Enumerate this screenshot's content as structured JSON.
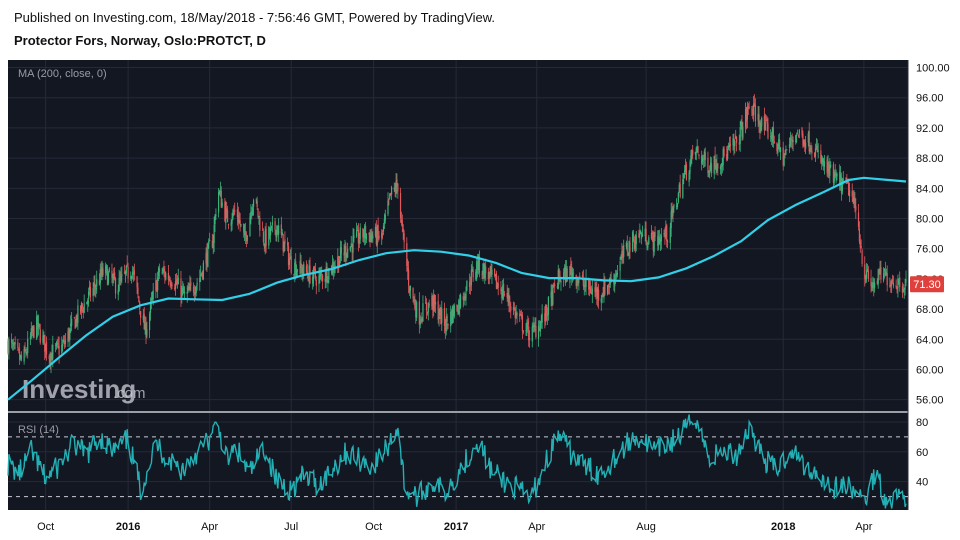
{
  "header": {
    "published": "Published on Investing.com, 18/May/2018 - 7:56:46 GMT, Powered by TradingView.",
    "instrument": "Protector Fors, Norway, Oslo:PROTCT, D"
  },
  "watermark": {
    "brand": "Investing",
    "suffix": ".com"
  },
  "colors": {
    "background": "#131722",
    "grid": "#262a38",
    "candle_up": "#3bb37a",
    "candle_down": "#e0595b",
    "ma_line": "#31d0e8",
    "rsi_line": "#23b0b5",
    "price_badge": "#e0403c"
  },
  "chart_data": [
    {
      "type": "candlestick",
      "indicator_label": "MA (200, close, 0)",
      "y_axis_ticks": [
        "100.00",
        "96.00",
        "92.00",
        "88.00",
        "84.00",
        "80.00",
        "76.00",
        "72.00",
        "68.00",
        "64.00",
        "60.00",
        "56.00"
      ],
      "ylim": [
        54.5,
        101
      ],
      "last_price": "71.30",
      "x_axis_ticks": [
        "Oct",
        "2016",
        "Apr",
        "Jul",
        "Oct",
        "2017",
        "Apr",
        "Aug",
        "2018",
        "Apr"
      ],
      "x_range": [
        "2015-08-20",
        "2018-05-18"
      ],
      "close_path": [
        [
          "2015-08-20",
          63.5
        ],
        [
          "2015-09-05",
          61
        ],
        [
          "2015-09-20",
          66
        ],
        [
          "2015-10-05",
          62
        ],
        [
          "2015-10-20",
          63
        ],
        [
          "2015-11-05",
          67
        ],
        [
          "2015-11-20",
          70
        ],
        [
          "2015-12-05",
          73
        ],
        [
          "2015-12-20",
          71
        ],
        [
          "2016-01-05",
          73.5
        ],
        [
          "2016-01-20",
          65
        ],
        [
          "2016-02-05",
          73
        ],
        [
          "2016-02-20",
          72
        ],
        [
          "2016-03-05",
          69.5
        ],
        [
          "2016-03-20",
          72
        ],
        [
          "2016-04-05",
          77.5
        ],
        [
          "2016-04-10",
          84
        ],
        [
          "2016-04-20",
          80
        ],
        [
          "2016-05-01",
          81
        ],
        [
          "2016-05-10",
          77
        ],
        [
          "2016-05-20",
          83
        ],
        [
          "2016-06-01",
          77
        ],
        [
          "2016-06-15",
          79
        ],
        [
          "2016-07-01",
          74
        ],
        [
          "2016-07-15",
          73
        ],
        [
          "2016-08-01",
          72
        ],
        [
          "2016-08-15",
          73.5
        ],
        [
          "2016-09-01",
          76
        ],
        [
          "2016-09-20",
          78
        ],
        [
          "2016-10-10",
          77.5
        ],
        [
          "2016-10-20",
          83
        ],
        [
          "2016-10-28",
          84.5
        ],
        [
          "2016-11-01",
          79
        ],
        [
          "2016-11-10",
          71
        ],
        [
          "2016-11-20",
          67
        ],
        [
          "2016-12-05",
          69
        ],
        [
          "2016-12-20",
          66
        ],
        [
          "2017-01-05",
          69
        ],
        [
          "2017-01-25",
          74
        ],
        [
          "2017-02-10",
          72
        ],
        [
          "2017-02-25",
          70
        ],
        [
          "2017-03-10",
          67
        ],
        [
          "2017-03-25",
          64.5
        ],
        [
          "2017-04-10",
          67
        ],
        [
          "2017-04-25",
          72
        ],
        [
          "2017-05-10",
          73
        ],
        [
          "2017-05-25",
          71
        ],
        [
          "2017-06-10",
          70
        ],
        [
          "2017-06-25",
          72
        ],
        [
          "2017-07-10",
          76
        ],
        [
          "2017-07-25",
          78
        ],
        [
          "2017-08-10",
          77
        ],
        [
          "2017-08-25",
          78
        ],
        [
          "2017-09-10",
          85
        ],
        [
          "2017-09-25",
          89
        ],
        [
          "2017-10-10",
          87
        ],
        [
          "2017-10-25",
          88
        ],
        [
          "2017-11-10",
          90
        ],
        [
          "2017-11-25",
          95
        ],
        [
          "2017-12-10",
          92
        ],
        [
          "2017-12-20",
          91
        ],
        [
          "2018-01-01",
          88
        ],
        [
          "2018-01-15",
          91.5
        ],
        [
          "2018-02-01",
          90
        ],
        [
          "2018-02-15",
          87
        ],
        [
          "2018-03-01",
          85
        ],
        [
          "2018-03-15",
          84
        ],
        [
          "2018-03-25",
          80
        ],
        [
          "2018-04-01",
          73
        ],
        [
          "2018-04-10",
          71
        ],
        [
          "2018-04-20",
          72.5
        ],
        [
          "2018-05-01",
          72
        ],
        [
          "2018-05-10",
          71.5
        ],
        [
          "2018-05-18",
          71.3
        ]
      ],
      "ma_200": [
        [
          "2015-08-20",
          56
        ],
        [
          "2015-09-15",
          58.5
        ],
        [
          "2015-10-15",
          61.5
        ],
        [
          "2015-11-15",
          64.5
        ],
        [
          "2015-12-15",
          67
        ],
        [
          "2016-01-15",
          68.5
        ],
        [
          "2016-02-15",
          69.4
        ],
        [
          "2016-03-15",
          69.3
        ],
        [
          "2016-04-15",
          69.2
        ],
        [
          "2016-05-15",
          70
        ],
        [
          "2016-06-15",
          71.5
        ],
        [
          "2016-07-15",
          72.5
        ],
        [
          "2016-08-15",
          73.3
        ],
        [
          "2016-09-15",
          74.5
        ],
        [
          "2016-10-15",
          75.4
        ],
        [
          "2016-11-15",
          75.8
        ],
        [
          "2016-12-15",
          75.6
        ],
        [
          "2017-01-15",
          75.1
        ],
        [
          "2017-02-15",
          74.1
        ],
        [
          "2017-03-15",
          72.8
        ],
        [
          "2017-04-15",
          72.1
        ],
        [
          "2017-05-15",
          72.1
        ],
        [
          "2017-06-15",
          71.8
        ],
        [
          "2017-07-15",
          71.7
        ],
        [
          "2017-08-15",
          72.2
        ],
        [
          "2017-09-15",
          73.4
        ],
        [
          "2017-10-15",
          75
        ],
        [
          "2017-11-15",
          77
        ],
        [
          "2017-12-15",
          79.8
        ],
        [
          "2018-01-15",
          81.8
        ],
        [
          "2018-02-15",
          83.5
        ],
        [
          "2018-03-15",
          85.1
        ],
        [
          "2018-04-01",
          85.4
        ],
        [
          "2018-05-18",
          84.9
        ]
      ]
    },
    {
      "type": "line",
      "indicator_label": "RSI (14)",
      "y_axis_ticks": [
        "80",
        "60",
        "40"
      ],
      "ylim": [
        21,
        86
      ],
      "reference_levels": [
        70,
        30
      ],
      "x_range": [
        "2015-08-20",
        "2018-05-18"
      ],
      "series": [
        {
          "values": [
            [
              "2015-08-20",
              52
            ],
            [
              "2015-09-01",
              45
            ],
            [
              "2015-09-15",
              60
            ],
            [
              "2015-10-01",
              42
            ],
            [
              "2015-10-15",
              50
            ],
            [
              "2015-11-01",
              65
            ],
            [
              "2015-11-15",
              58
            ],
            [
              "2015-12-01",
              70
            ],
            [
              "2015-12-15",
              60
            ],
            [
              "2016-01-01",
              68
            ],
            [
              "2016-01-15",
              35
            ],
            [
              "2016-02-01",
              65
            ],
            [
              "2016-02-15",
              55
            ],
            [
              "2016-03-01",
              48
            ],
            [
              "2016-03-15",
              58
            ],
            [
              "2016-04-01",
              68
            ],
            [
              "2016-04-10",
              78
            ],
            [
              "2016-04-20",
              55
            ],
            [
              "2016-05-01",
              62
            ],
            [
              "2016-05-15",
              45
            ],
            [
              "2016-06-01",
              63
            ],
            [
              "2016-06-15",
              40
            ],
            [
              "2016-07-01",
              35
            ],
            [
              "2016-07-15",
              44
            ],
            [
              "2016-08-01",
              38
            ],
            [
              "2016-08-15",
              48
            ],
            [
              "2016-09-01",
              60
            ],
            [
              "2016-09-15",
              55
            ],
            [
              "2016-10-01",
              50
            ],
            [
              "2016-10-15",
              62
            ],
            [
              "2016-10-28",
              77
            ],
            [
              "2016-11-05",
              35
            ],
            [
              "2016-11-20",
              30
            ],
            [
              "2016-12-05",
              40
            ],
            [
              "2016-12-20",
              33
            ],
            [
              "2017-01-10",
              52
            ],
            [
              "2017-01-25",
              68
            ],
            [
              "2017-02-10",
              46
            ],
            [
              "2017-02-25",
              40
            ],
            [
              "2017-03-10",
              35
            ],
            [
              "2017-03-25",
              28
            ],
            [
              "2017-04-10",
              52
            ],
            [
              "2017-04-25",
              72
            ],
            [
              "2017-05-10",
              58
            ],
            [
              "2017-05-25",
              50
            ],
            [
              "2017-06-10",
              45
            ],
            [
              "2017-06-25",
              55
            ],
            [
              "2017-07-10",
              65
            ],
            [
              "2017-07-25",
              70
            ],
            [
              "2017-08-10",
              60
            ],
            [
              "2017-08-25",
              65
            ],
            [
              "2017-09-10",
              72
            ],
            [
              "2017-09-25",
              85
            ],
            [
              "2017-10-10",
              55
            ],
            [
              "2017-10-25",
              60
            ],
            [
              "2017-11-10",
              58
            ],
            [
              "2017-11-25",
              77
            ],
            [
              "2017-12-10",
              55
            ],
            [
              "2017-12-25",
              48
            ],
            [
              "2018-01-10",
              62
            ],
            [
              "2018-01-25",
              50
            ],
            [
              "2018-02-10",
              45
            ],
            [
              "2018-02-25",
              35
            ],
            [
              "2018-03-10",
              38
            ],
            [
              "2018-03-25",
              32
            ],
            [
              "2018-04-01",
              26
            ],
            [
              "2018-04-15",
              48
            ],
            [
              "2018-04-25",
              28
            ],
            [
              "2018-05-05",
              30
            ],
            [
              "2018-05-18",
              31
            ]
          ]
        }
      ]
    }
  ]
}
